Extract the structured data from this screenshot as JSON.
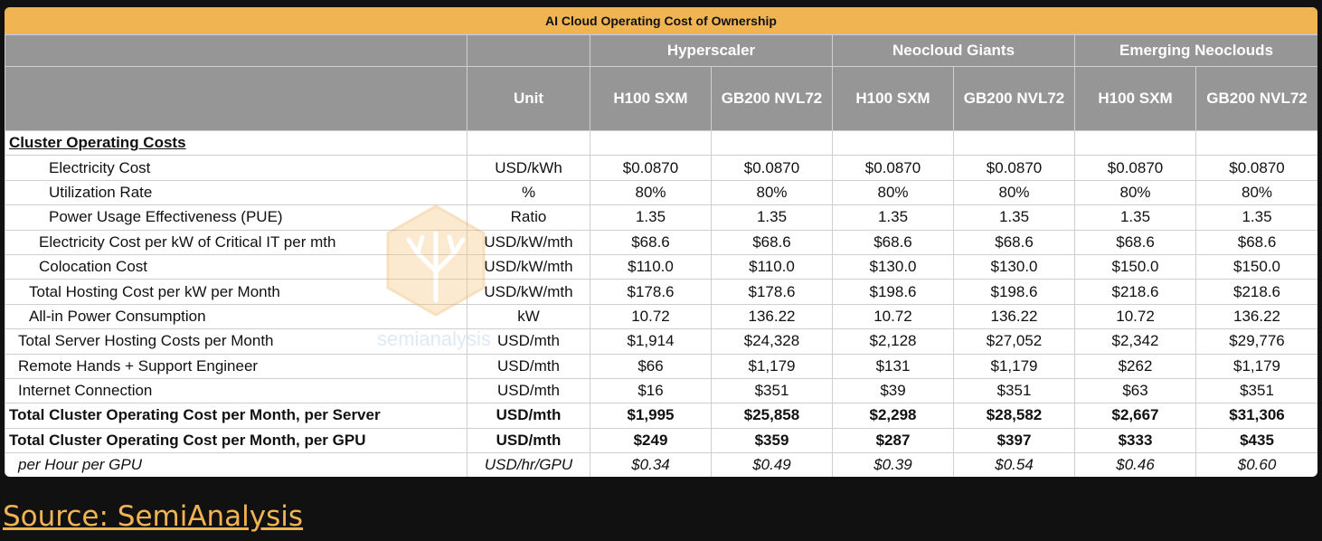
{
  "table": {
    "title": "AI Cloud Operating Cost of Ownership",
    "unit_header": "Unit",
    "groups": [
      "Hyperscaler",
      "Neocloud Giants",
      "Emerging Neoclouds"
    ],
    "columns": [
      "H100 SXM",
      "GB200 NVL72",
      "H100 SXM",
      "GB200 NVL72",
      "H100 SXM",
      "GB200 NVL72"
    ],
    "rows": [
      {
        "label": "Cluster Operating Costs",
        "unit": "",
        "values": [
          "",
          "",
          "",
          "",
          "",
          ""
        ],
        "style": "section",
        "indent": 0
      },
      {
        "label": "Electricity Cost",
        "unit": "USD/kWh",
        "values": [
          "$0.0870",
          "$0.0870",
          "$0.0870",
          "$0.0870",
          "$0.0870",
          "$0.0870"
        ],
        "style": "normal",
        "indent": 4
      },
      {
        "label": "Utilization Rate",
        "unit": "%",
        "values": [
          "80%",
          "80%",
          "80%",
          "80%",
          "80%",
          "80%"
        ],
        "style": "normal",
        "indent": 4
      },
      {
        "label": "Power Usage Effectiveness (PUE)",
        "unit": "Ratio",
        "values": [
          "1.35",
          "1.35",
          "1.35",
          "1.35",
          "1.35",
          "1.35"
        ],
        "style": "normal",
        "indent": 4
      },
      {
        "label": "Electricity Cost per kW of Critical IT per mth",
        "unit": "USD/kW/mth",
        "values": [
          "$68.6",
          "$68.6",
          "$68.6",
          "$68.6",
          "$68.6",
          "$68.6"
        ],
        "style": "normal",
        "indent": 3
      },
      {
        "label": "Colocation Cost",
        "unit": "USD/kW/mth",
        "values": [
          "$110.0",
          "$110.0",
          "$130.0",
          "$130.0",
          "$150.0",
          "$150.0"
        ],
        "style": "normal",
        "indent": 3
      },
      {
        "label": "Total Hosting Cost per kW per Month",
        "unit": "USD/kW/mth",
        "values": [
          "$178.6",
          "$178.6",
          "$198.6",
          "$198.6",
          "$218.6",
          "$218.6"
        ],
        "style": "normal",
        "indent": 2
      },
      {
        "label": "All-in Power Consumption",
        "unit": "kW",
        "values": [
          "10.72",
          "136.22",
          "10.72",
          "136.22",
          "10.72",
          "136.22"
        ],
        "style": "normal",
        "indent": 2
      },
      {
        "label": "Total Server Hosting Costs per Month",
        "unit": "USD/mth",
        "values": [
          "$1,914",
          "$24,328",
          "$2,128",
          "$27,052",
          "$2,342",
          "$29,776"
        ],
        "style": "normal",
        "indent": 1
      },
      {
        "label": "Remote Hands + Support Engineer",
        "unit": "USD/mth",
        "values": [
          "$66",
          "$1,179",
          "$131",
          "$1,179",
          "$262",
          "$1,179"
        ],
        "style": "normal",
        "indent": 1
      },
      {
        "label": "Internet Connection",
        "unit": "USD/mth",
        "values": [
          "$16",
          "$351",
          "$39",
          "$351",
          "$63",
          "$351"
        ],
        "style": "normal",
        "indent": 1
      },
      {
        "label": "Total Cluster Operating Cost per Month, per Server",
        "unit": "USD/mth",
        "values": [
          "$1,995",
          "$25,858",
          "$2,298",
          "$28,582",
          "$2,667",
          "$31,306"
        ],
        "style": "bold",
        "indent": 0
      },
      {
        "label": "Total Cluster Operating Cost per Month, per GPU",
        "unit": "USD/mth",
        "values": [
          "$249",
          "$359",
          "$287",
          "$397",
          "$333",
          "$435"
        ],
        "style": "bold",
        "indent": 0
      },
      {
        "label": "per Hour per GPU",
        "unit": "USD/hr/GPU",
        "values": [
          "$0.34",
          "$0.49",
          "$0.39",
          "$0.54",
          "$0.46",
          "$0.60"
        ],
        "style": "italic",
        "indent": 1
      }
    ]
  },
  "watermark": {
    "text": "semianalysis",
    "icon": "tree-logo-icon"
  },
  "source_link": "Source: SemiAnalysis",
  "colors": {
    "title_bar": "#f0b552",
    "header": "#969696",
    "background": "#111111",
    "link": "#f0b552"
  }
}
